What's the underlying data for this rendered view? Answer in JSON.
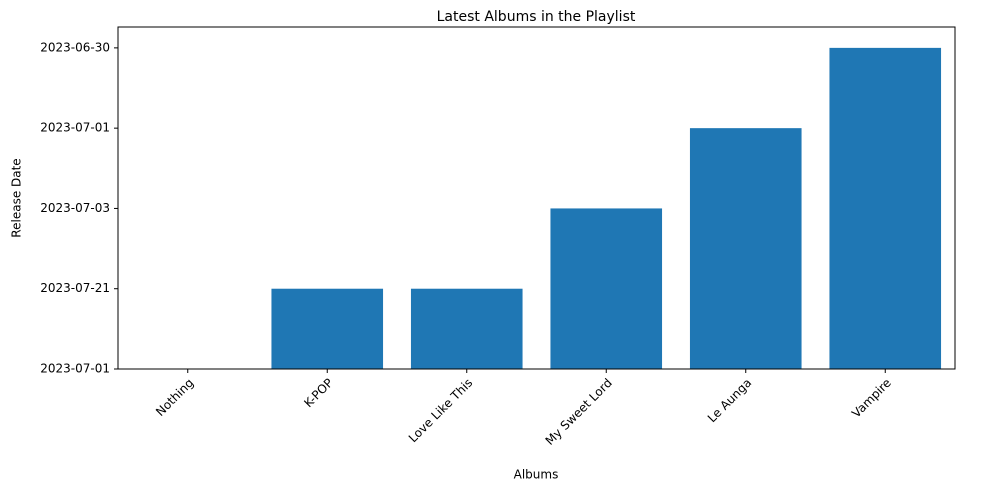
{
  "chart_data": {
    "type": "bar",
    "title": "Latest Albums in the Playlist",
    "x_label": "Albums",
    "y_label": "Release Date",
    "categories": [
      "Nothing",
      "K-POP",
      "Love Like This",
      "My Sweet Lord",
      "Le Aunga",
      "Vampire"
    ],
    "values": [
      0,
      1,
      1,
      2,
      3,
      4
    ],
    "color": "#1f77b4",
    "ylim": [
      0,
      4.26
    ],
    "yticks": [
      {
        "value": 0,
        "label": "2023-07-01"
      },
      {
        "value": 1,
        "label": "2023-07-21"
      },
      {
        "value": 2,
        "label": "2023-07-03"
      },
      {
        "value": 3,
        "label": "2023-07-01"
      },
      {
        "value": 4,
        "label": "2023-06-30"
      }
    ],
    "grid": false
  }
}
